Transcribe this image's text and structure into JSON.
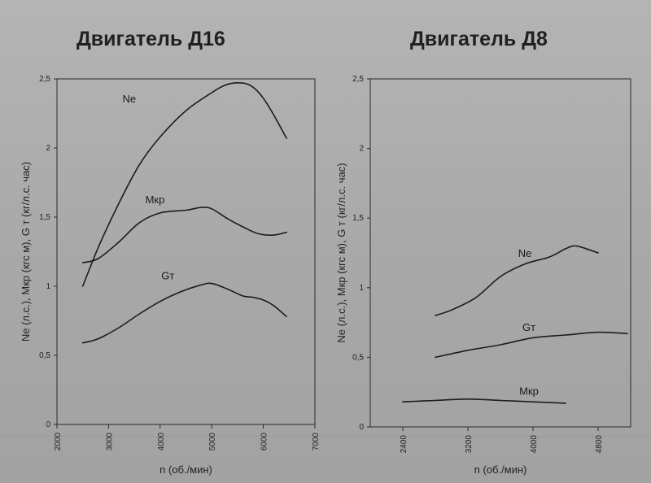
{
  "chart_data": [
    {
      "type": "line",
      "title": "Двигатель Д16",
      "xlabel": "n (об./мин)",
      "ylabel": "Ne (л.с.),  Mкр (кгс м),  G т (кг/л.с. час)",
      "xlim": [
        2000,
        7000
      ],
      "ylim": [
        0,
        2.5
      ],
      "x_ticks": [
        2000,
        3000,
        4000,
        5000,
        6000,
        7000
      ],
      "x_tick_labels": [
        "2000",
        "3000",
        "4000",
        "5000",
        "6000",
        "7000"
      ],
      "y_ticks": [
        0,
        0.5,
        1,
        1.5,
        2,
        2.5
      ],
      "y_tick_labels": [
        "0",
        "0,5",
        "1",
        "1,5",
        "2",
        "2,5"
      ],
      "grid": false,
      "series": [
        {
          "name": "Ne",
          "x": [
            2500,
            2800,
            3200,
            3600,
            4000,
            4500,
            5000,
            5300,
            5600,
            5800,
            6000,
            6200,
            6450
          ],
          "y": [
            1.0,
            1.28,
            1.6,
            1.88,
            2.08,
            2.27,
            2.4,
            2.46,
            2.47,
            2.44,
            2.36,
            2.24,
            2.07
          ]
        },
        {
          "name": "Mкр",
          "x": [
            2500,
            2800,
            3200,
            3600,
            4000,
            4500,
            4800,
            5000,
            5300,
            5600,
            5900,
            6200,
            6450
          ],
          "y": [
            1.17,
            1.2,
            1.32,
            1.46,
            1.53,
            1.55,
            1.57,
            1.56,
            1.49,
            1.43,
            1.38,
            1.37,
            1.39
          ]
        },
        {
          "name": "Gт",
          "x": [
            2500,
            2800,
            3200,
            3600,
            4000,
            4400,
            4800,
            5000,
            5300,
            5600,
            5800,
            6000,
            6200,
            6450
          ],
          "y": [
            0.59,
            0.62,
            0.7,
            0.8,
            0.89,
            0.96,
            1.01,
            1.02,
            0.98,
            0.93,
            0.92,
            0.9,
            0.86,
            0.78
          ]
        }
      ]
    },
    {
      "type": "line",
      "title": "Двигатель Д8",
      "xlabel": "n (об./мин)",
      "ylabel": "Ne (л.с.),  Mкр (кгс м),  G т (кг/л.с. час)",
      "xlim": [
        2000,
        5200
      ],
      "ylim": [
        0,
        2.5
      ],
      "x_ticks": [
        2400,
        3200,
        4000,
        4800
      ],
      "x_tick_labels": [
        "2400",
        "3200",
        "4000",
        "4800"
      ],
      "y_ticks": [
        0,
        0.5,
        1,
        1.5,
        2,
        2.5
      ],
      "y_tick_labels": [
        "0",
        "0,5",
        "1",
        "1,5",
        "2",
        "2,5"
      ],
      "grid": false,
      "series": [
        {
          "name": "Ne",
          "x": [
            2800,
            3000,
            3300,
            3600,
            3900,
            4200,
            4400,
            4500,
            4600,
            4800
          ],
          "y": [
            0.8,
            0.84,
            0.93,
            1.08,
            1.17,
            1.22,
            1.28,
            1.3,
            1.29,
            1.25
          ]
        },
        {
          "name": "Gт",
          "x": [
            2800,
            3200,
            3600,
            4000,
            4400,
            4800,
            5160
          ],
          "y": [
            0.5,
            0.55,
            0.59,
            0.64,
            0.66,
            0.68,
            0.67
          ]
        },
        {
          "name": "Mкр",
          "x": [
            2400,
            2800,
            3200,
            3600,
            4000,
            4400
          ],
          "y": [
            0.18,
            0.19,
            0.2,
            0.19,
            0.18,
            0.17
          ]
        }
      ]
    }
  ]
}
